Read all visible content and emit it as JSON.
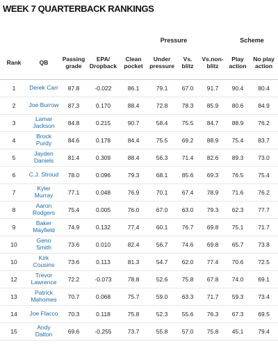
{
  "header": {
    "title": "WEEK 7 QUARTERBACK RANKINGS"
  },
  "table": {
    "groups": [
      "Pressure",
      "Scheme"
    ],
    "columns": [
      "Rank",
      "QB",
      "Passing grade",
      "EPA/ Dropback",
      "Clean pocket",
      "Under pressure",
      "Vs. blitz",
      "Vs.non-blitz",
      "Play action",
      "No play action"
    ],
    "rows": [
      [
        "1",
        "Derek Carr",
        "87.8",
        "-0.022",
        "86.1",
        "79.1",
        "67.0",
        "91.7",
        "90.4",
        "80.4"
      ],
      [
        "2",
        "Joe Burrow",
        "87.3",
        "0.170",
        "88.4",
        "72.8",
        "78.3",
        "85.9",
        "80.6",
        "84.9"
      ],
      [
        "3",
        "Lamar Jackson",
        "84.8",
        "0.215",
        "90.7",
        "58.4",
        "75.5",
        "84.7",
        "88.9",
        "76.2"
      ],
      [
        "4",
        "Brock Purdy",
        "84.6",
        "0.178",
        "84.4",
        "75.5",
        "69.2",
        "88.9",
        "75.4",
        "83.7"
      ],
      [
        "5",
        "Jayden Daniels",
        "81.4",
        "0.309",
        "88.4",
        "56.3",
        "71.4",
        "82.6",
        "89.3",
        "73.0"
      ],
      [
        "6",
        "C.J. Stroud",
        "78.0",
        "0.096",
        "79.3",
        "68.1",
        "85.6",
        "69.3",
        "76.5",
        "75.4"
      ],
      [
        "7",
        "Kyler Murray",
        "77.1",
        "0.048",
        "76.9",
        "70.1",
        "67.4",
        "78.9",
        "71.6",
        "76.2"
      ],
      [
        "8",
        "Aaron Rodgers",
        "75.4",
        "0.005",
        "76.0",
        "67.0",
        "63.0",
        "79.3",
        "62.3",
        "77.7"
      ],
      [
        "9",
        "Baker Mayfield",
        "74.9",
        "0.132",
        "77.4",
        "60.1",
        "76.7",
        "69.8",
        "75.1",
        "71.7"
      ],
      [
        "10",
        "Geno Smith",
        "73.6",
        "0.010",
        "82.4",
        "56.7",
        "74.6",
        "69.8",
        "65.7",
        "73.8"
      ],
      [
        "10",
        "Kirk Cousins",
        "73.6",
        "0.113",
        "81.3",
        "54.7",
        "62.0",
        "77.4",
        "70.6",
        "72.5"
      ],
      [
        "12",
        "Trevor Lawrence",
        "72.2",
        "-0.073",
        "78.8",
        "52.6",
        "75.8",
        "67.8",
        "74.0",
        "69.1"
      ],
      [
        "13",
        "Patrick Mahomes",
        "70.7",
        "0.068",
        "75.7",
        "59.0",
        "63.3",
        "71.7",
        "59.3",
        "73.4"
      ],
      [
        "14",
        "Joe Flacco",
        "70.3",
        "0.118",
        "75.8",
        "52.3",
        "55.6",
        "76.3",
        "67.3",
        "69.5"
      ],
      [
        "15",
        "Andy Dalton",
        "69.6",
        "-0.255",
        "73.7",
        "55.8",
        "57.0",
        "75.8",
        "45.1",
        "79.4"
      ]
    ]
  }
}
